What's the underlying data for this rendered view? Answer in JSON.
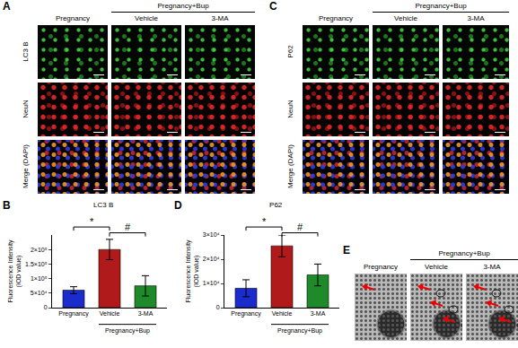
{
  "panels": {
    "A": {
      "label": "A",
      "group_header": "Pregnancy+Bup",
      "group_columns": [
        "Vehicle",
        "3-MA"
      ],
      "columns": [
        "Pregnancy",
        "Vehicle",
        "3-MA"
      ],
      "rows": [
        "LC3 B",
        "NeuN",
        "Merge (DAPI)"
      ]
    },
    "C": {
      "label": "C",
      "group_header": "Pregnancy+Bup",
      "group_columns": [
        "Vehicle",
        "3-MA"
      ],
      "columns": [
        "Pregnancy",
        "Vehicle",
        "3-MA"
      ],
      "rows": [
        "P62",
        "NeuN",
        "Merge (DAPI)"
      ]
    },
    "E": {
      "label": "E",
      "group_header": "Pregnancy+Bup",
      "group_columns": [
        "Vehicle",
        "3-MA"
      ],
      "columns": [
        "Pregnancy",
        "Vehicle",
        "3-MA"
      ]
    }
  },
  "chart_data": [
    {
      "type": "bar",
      "panel_label": "B",
      "title": "LC3 B",
      "ylabel": "Fluorescence Intensity (IOD value)",
      "categories": [
        "Pregnancy",
        "Vehicle",
        "3-MA"
      ],
      "values": [
        60000,
        200000,
        75000
      ],
      "errors": [
        12000,
        35000,
        35000
      ],
      "colors": [
        "#1a2ccc",
        "#b01a1a",
        "#1f8a2a"
      ],
      "ylim": [
        0,
        250000
      ],
      "yticks": [
        0,
        {
          "value": 50000,
          "label": "5×10⁴"
        },
        {
          "value": 100000,
          "label": "1×10⁵"
        },
        {
          "value": 150000,
          "label": "1.5×10⁵"
        },
        {
          "value": 200000,
          "label": "2×10⁵"
        }
      ],
      "grid": false,
      "significance": [
        {
          "text": "*",
          "categories": [
            "Pregnancy",
            "Vehicle"
          ]
        },
        {
          "text": "#",
          "categories": [
            "Vehicle",
            "3-MA"
          ]
        }
      ],
      "group_label": {
        "text": "Pregnancy+Bup",
        "categories": [
          "Vehicle",
          "3-MA"
        ]
      }
    },
    {
      "type": "bar",
      "panel_label": "D",
      "title": "P62",
      "ylabel": "Fluorescence Intensity (IOD value)",
      "categories": [
        "Pregnancy",
        "Vehicle",
        "3-MA"
      ],
      "values": [
        8000,
        25500,
        13500
      ],
      "errors": [
        3500,
        4500,
        4500
      ],
      "colors": [
        "#1a2ccc",
        "#b01a1a",
        "#1f8a2a"
      ],
      "ylim": [
        0,
        30000
      ],
      "yticks": [
        0,
        {
          "value": 10000,
          "label": "1×10⁴"
        },
        {
          "value": 20000,
          "label": "2×10⁴"
        },
        {
          "value": 30000,
          "label": "3×10⁴"
        }
      ],
      "grid": false,
      "significance": [
        {
          "text": "*",
          "categories": [
            "Pregnancy",
            "Vehicle"
          ]
        },
        {
          "text": "#",
          "categories": [
            "Vehicle",
            "3-MA"
          ]
        }
      ],
      "group_label": {
        "text": "Pregnancy+Bup",
        "categories": [
          "Vehicle",
          "3-MA"
        ]
      }
    }
  ]
}
